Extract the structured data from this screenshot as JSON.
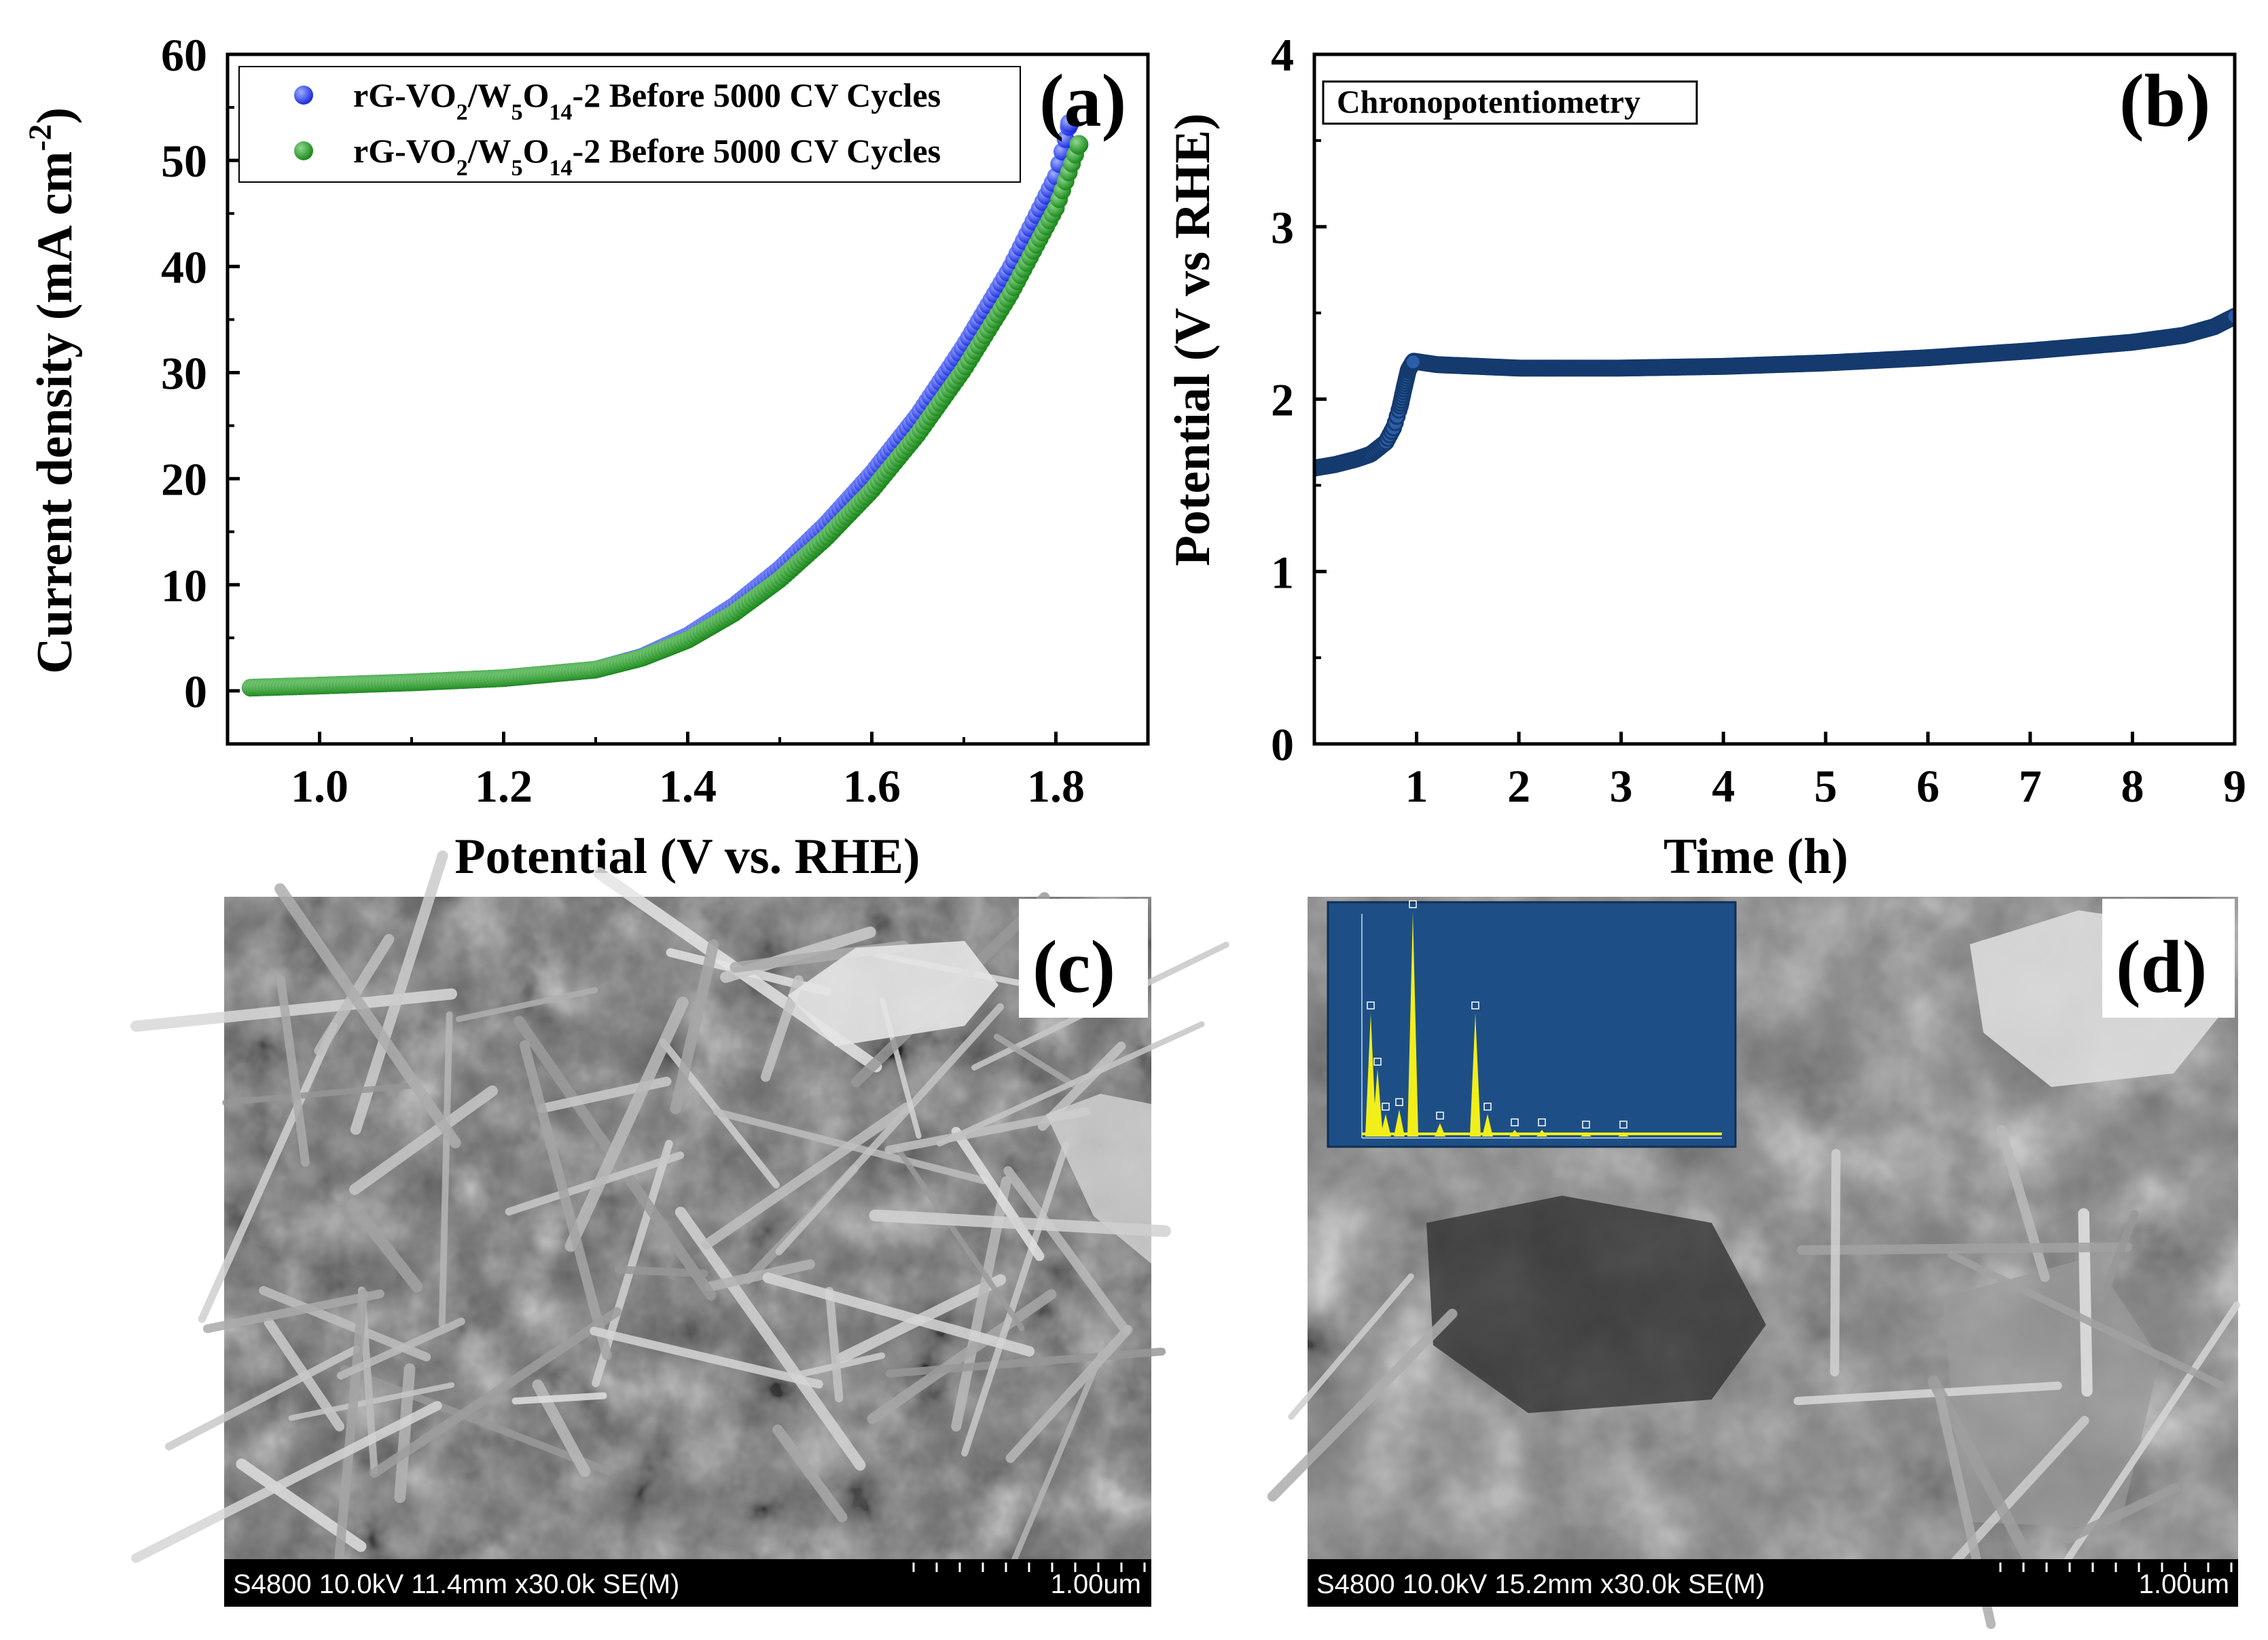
{
  "chart_data": [
    {
      "panel": "(a)",
      "type": "scatter",
      "xlabel": "Potential (V vs. RHE)",
      "ylabel": "Current density (mA cm",
      "ylabel_sup": "-2",
      "ylabel_close": ")",
      "xlim": [
        0.9,
        1.9
      ],
      "ylim": [
        -5,
        60
      ],
      "xticks": [
        1.0,
        1.2,
        1.4,
        1.6,
        1.8
      ],
      "xtick_labels": [
        "1.0",
        "1.2",
        "1.4",
        "1.6",
        "1.8"
      ],
      "yticks": [
        0,
        10,
        20,
        30,
        40,
        50,
        60
      ],
      "ytick_labels": [
        "0",
        "10",
        "20",
        "30",
        "40",
        "50",
        "60"
      ],
      "legend_position": "top-right",
      "series": [
        {
          "name": "rG-VO2/W5O14-2 Before 5000 CV Cycles",
          "label_parts": [
            [
              "rG-VO",
              ""
            ],
            [
              "2",
              "sub"
            ],
            [
              "/W",
              ""
            ],
            [
              "5",
              "sub"
            ],
            [
              "O",
              ""
            ],
            [
              "14",
              "sub"
            ],
            [
              "-2 Before 5000 CV Cycles",
              ""
            ]
          ],
          "color": "#1c2ee0",
          "x": [
            0.925,
            1.0,
            1.1,
            1.2,
            1.3,
            1.35,
            1.4,
            1.45,
            1.5,
            1.55,
            1.6,
            1.65,
            1.7,
            1.75,
            1.8,
            1.815
          ],
          "y": [
            0.3,
            0.5,
            0.8,
            1.2,
            2.0,
            3.2,
            5.2,
            8.0,
            11.5,
            15.7,
            20.5,
            26.0,
            32.5,
            39.8,
            48.5,
            53.5
          ]
        },
        {
          "name": "rG-VO2/W5O14-2 Before 5000 CV Cycles",
          "label_parts": [
            [
              "rG-VO",
              ""
            ],
            [
              "2",
              "sub"
            ],
            [
              "/W",
              ""
            ],
            [
              "5",
              "sub"
            ],
            [
              "O",
              ""
            ],
            [
              "14",
              "sub"
            ],
            [
              "-2 Before 5000 CV Cycles",
              ""
            ]
          ],
          "color": "#1e8a1e",
          "x": [
            0.925,
            1.0,
            1.1,
            1.2,
            1.3,
            1.35,
            1.4,
            1.45,
            1.5,
            1.55,
            1.6,
            1.65,
            1.7,
            1.75,
            1.8,
            1.825
          ],
          "y": [
            0.3,
            0.5,
            0.8,
            1.2,
            2.0,
            3.1,
            4.8,
            7.3,
            10.5,
            14.4,
            18.9,
            24.2,
            30.3,
            37.3,
            45.5,
            51.5
          ]
        }
      ]
    },
    {
      "panel": "(b)",
      "type": "line",
      "annotation": "Chronopotentiometry",
      "xlabel": "Time (h)",
      "ylabel": "Potential (V vs RHE)",
      "xlim": [
        0.0,
        9.0
      ],
      "ylim": [
        0,
        4
      ],
      "xticks": [
        1,
        2,
        3,
        4,
        5,
        6,
        7,
        8,
        9
      ],
      "xtick_labels": [
        "1",
        "2",
        "3",
        "4",
        "5",
        "6",
        "7",
        "8",
        "9"
      ],
      "yticks": [
        0,
        1,
        2,
        3,
        4
      ],
      "ytick_labels": [
        "0",
        "1",
        "2",
        "3",
        "4"
      ],
      "series": [
        {
          "color": "#1f4f8f",
          "x": [
            0.0,
            0.2,
            0.4,
            0.55,
            0.7,
            0.78,
            0.84,
            0.88,
            0.92,
            0.97,
            1.2,
            2,
            3,
            4,
            5,
            6,
            7,
            8,
            8.5,
            8.8,
            9.0
          ],
          "y": [
            1.6,
            1.62,
            1.65,
            1.68,
            1.75,
            1.84,
            1.96,
            2.07,
            2.17,
            2.22,
            2.2,
            2.18,
            2.18,
            2.19,
            2.21,
            2.24,
            2.28,
            2.33,
            2.37,
            2.42,
            2.48
          ]
        }
      ]
    }
  ],
  "panel_c": {
    "label": "(c)",
    "sem_info": "S4800 10.0kV 11.4mm x30.0k SE(M)",
    "scale_label": "1.00um"
  },
  "panel_d": {
    "label": "(d)",
    "sem_info": "S4800 10.0kV 15.2mm x30.0k SE(M)",
    "scale_label": "1.00um",
    "eds_inset": {
      "background": "#1d4f86",
      "trace_color": "#f2ee1a",
      "peak_heights": [
        0.55,
        0.3,
        0.1,
        0.12,
        1.0,
        0.06,
        0.55,
        0.1,
        0.03,
        0.03,
        0.02,
        0.02
      ]
    }
  }
}
